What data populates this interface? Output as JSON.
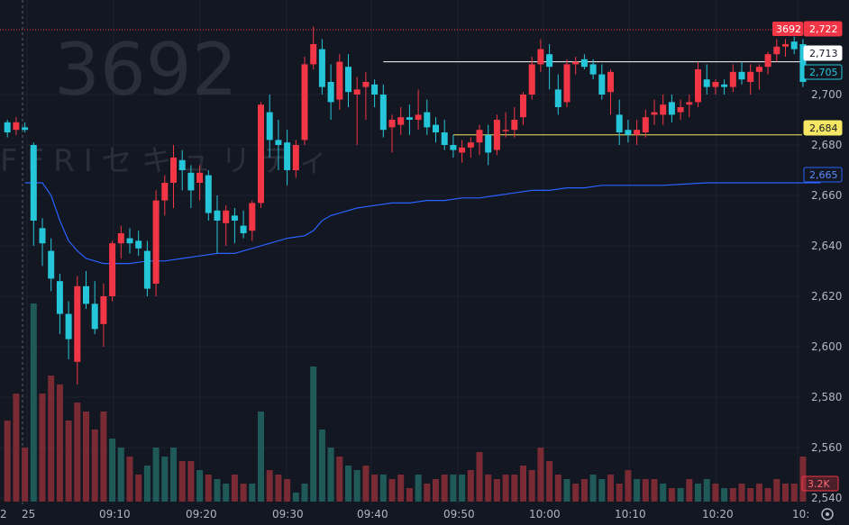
{
  "chart_data": {
    "type": "candlestick",
    "symbol": "3692",
    "watermark_code": "3692",
    "watermark_name": "FFRIセキュリティ",
    "colors": {
      "up": "#f23645",
      "down": "#22ab94",
      "up_body": "#f23645",
      "down_body": "#26c6da",
      "vwap": "#2962ff",
      "vol_up": "#7a2a33",
      "vol_down": "#1f5a59"
    },
    "y_axis": {
      "ticks": [
        2540,
        2560,
        2580,
        2600,
        2620,
        2640,
        2660,
        2680,
        2700
      ],
      "tick_labels": [
        "2,540",
        "2,560",
        "2,580",
        "2,600",
        "2,620",
        "2,640",
        "2,660",
        "2,680",
        "2,700"
      ]
    },
    "x_axis": {
      "ticks": [
        "25",
        "09:10",
        "09:20",
        "09:30",
        "09:40",
        "09:50",
        "10:00",
        "10:10",
        "10:20",
        "10:"
      ],
      "left_label": "2"
    },
    "price_tags": [
      {
        "value": 2722,
        "label": "2,722",
        "prefix": "3692",
        "style": "red"
      },
      {
        "value": 2713,
        "label": "2,713",
        "style": "white"
      },
      {
        "value": 2705,
        "label": "2,705",
        "style": "teal"
      },
      {
        "value": 2684,
        "label": "2,684",
        "style": "yellow"
      },
      {
        "value": 2665,
        "label": "2,665",
        "style": "blue"
      }
    ],
    "volume_tag": "3.2K",
    "horizontal_lines": [
      {
        "value": 2713,
        "from_bar": 43
      },
      {
        "value": 2684,
        "from_bar": 51
      }
    ],
    "candles": [
      [
        2689,
        2690,
        2683,
        2685
      ],
      [
        2686,
        2691,
        2684,
        2689
      ],
      [
        2687,
        2689,
        2685,
        2686
      ],
      [
        2680,
        2681,
        2640,
        2650
      ],
      [
        2647,
        2651,
        2632,
        2641
      ],
      [
        2638,
        2643,
        2622,
        2627
      ],
      [
        2626,
        2629,
        2605,
        2613
      ],
      [
        2613,
        2618,
        2595,
        2603
      ],
      [
        2594,
        2628,
        2585,
        2624
      ],
      [
        2624,
        2630,
        2615,
        2617
      ],
      [
        2617,
        2626,
        2605,
        2607
      ],
      [
        2609,
        2625,
        2600,
        2620
      ],
      [
        2620,
        2642,
        2618,
        2641
      ],
      [
        2641,
        2648,
        2635,
        2645
      ],
      [
        2643,
        2647,
        2637,
        2641
      ],
      [
        2642,
        2646,
        2636,
        2639
      ],
      [
        2638,
        2642,
        2620,
        2623
      ],
      [
        2625,
        2662,
        2620,
        2658
      ],
      [
        2658,
        2668,
        2652,
        2665
      ],
      [
        2665,
        2680,
        2655,
        2675
      ],
      [
        2674,
        2678,
        2662,
        2670
      ],
      [
        2669,
        2672,
        2655,
        2662
      ],
      [
        2665,
        2672,
        2658,
        2669
      ],
      [
        2668,
        2670,
        2650,
        2653
      ],
      [
        2654,
        2660,
        2637,
        2650
      ],
      [
        2649,
        2656,
        2640,
        2654
      ],
      [
        2652,
        2655,
        2641,
        2650
      ],
      [
        2648,
        2654,
        2643,
        2645
      ],
      [
        2646,
        2658,
        2642,
        2657
      ],
      [
        2657,
        2697,
        2655,
        2696
      ],
      [
        2693,
        2700,
        2675,
        2682
      ],
      [
        2682,
        2690,
        2670,
        2680
      ],
      [
        2681,
        2686,
        2664,
        2670
      ],
      [
        2670,
        2682,
        2667,
        2680
      ],
      [
        2682,
        2715,
        2680,
        2712
      ],
      [
        2712,
        2727,
        2710,
        2720
      ],
      [
        2718,
        2722,
        2700,
        2703
      ],
      [
        2705,
        2712,
        2690,
        2697
      ],
      [
        2698,
        2716,
        2694,
        2713
      ],
      [
        2711,
        2716,
        2695,
        2701
      ],
      [
        2700,
        2707,
        2680,
        2702
      ],
      [
        2703,
        2709,
        2690,
        2705
      ],
      [
        2704,
        2706,
        2695,
        2700
      ],
      [
        2700,
        2704,
        2683,
        2686
      ],
      [
        2687,
        2692,
        2677,
        2690
      ],
      [
        2688,
        2695,
        2684,
        2691
      ],
      [
        2691,
        2696,
        2684,
        2690
      ],
      [
        2690,
        2702,
        2686,
        2692
      ],
      [
        2693,
        2698,
        2684,
        2687
      ],
      [
        2688,
        2691,
        2681,
        2685
      ],
      [
        2685,
        2690,
        2678,
        2680
      ],
      [
        2680,
        2684,
        2675,
        2678
      ],
      [
        2677,
        2682,
        2673,
        2679
      ],
      [
        2679,
        2683,
        2675,
        2681
      ],
      [
        2681,
        2688,
        2676,
        2686
      ],
      [
        2684,
        2688,
        2672,
        2677
      ],
      [
        2678,
        2692,
        2676,
        2690
      ],
      [
        2686,
        2693,
        2683,
        2686
      ],
      [
        2686,
        2695,
        2683,
        2690
      ],
      [
        2691,
        2701,
        2688,
        2700
      ],
      [
        2700,
        2715,
        2698,
        2712
      ],
      [
        2712,
        2722,
        2709,
        2718
      ],
      [
        2716,
        2720,
        2702,
        2711
      ],
      [
        2702,
        2708,
        2692,
        2695
      ],
      [
        2697,
        2714,
        2695,
        2712
      ],
      [
        2712,
        2715,
        2708,
        2713
      ],
      [
        2714,
        2716,
        2710,
        2711
      ],
      [
        2712,
        2714,
        2706,
        2708
      ],
      [
        2708,
        2712,
        2698,
        2700
      ],
      [
        2701,
        2710,
        2692,
        2709
      ],
      [
        2692,
        2698,
        2680,
        2685
      ],
      [
        2686,
        2690,
        2681,
        2684
      ],
      [
        2684,
        2690,
        2680,
        2686
      ],
      [
        2685,
        2694,
        2683,
        2691
      ],
      [
        2692,
        2698,
        2688,
        2693
      ],
      [
        2692,
        2700,
        2688,
        2696
      ],
      [
        2697,
        2700,
        2689,
        2692
      ],
      [
        2693,
        2698,
        2690,
        2695
      ],
      [
        2696,
        2700,
        2691,
        2697
      ],
      [
        2697,
        2713,
        2695,
        2710
      ],
      [
        2706,
        2712,
        2700,
        2703
      ],
      [
        2703,
        2706,
        2700,
        2705
      ],
      [
        2704,
        2706,
        2700,
        2703
      ],
      [
        2703,
        2712,
        2701,
        2709
      ],
      [
        2709,
        2713,
        2704,
        2706
      ],
      [
        2705,
        2712,
        2700,
        2709
      ],
      [
        2709,
        2712,
        2702,
        2711
      ],
      [
        2711,
        2717,
        2708,
        2716
      ],
      [
        2716,
        2722,
        2713,
        2719
      ],
      [
        2719,
        2722,
        2715,
        2720
      ],
      [
        2721,
        2723,
        2716,
        2718
      ],
      [
        2720,
        2722,
        2703,
        2705
      ]
    ],
    "vwap": [
      [
        2,
        2665
      ],
      [
        3,
        2665
      ],
      [
        4,
        2665
      ],
      [
        5,
        2660
      ],
      [
        6,
        2650
      ],
      [
        7,
        2642
      ],
      [
        8,
        2638
      ],
      [
        9,
        2635
      ],
      [
        10,
        2634
      ],
      [
        11,
        2633
      ],
      [
        12,
        2633
      ],
      [
        14,
        2633
      ],
      [
        16,
        2634
      ],
      [
        18,
        2634
      ],
      [
        20,
        2635
      ],
      [
        22,
        2636
      ],
      [
        24,
        2637
      ],
      [
        26,
        2637
      ],
      [
        28,
        2639
      ],
      [
        30,
        2641
      ],
      [
        31,
        2642
      ],
      [
        32,
        2643
      ],
      [
        34,
        2644
      ],
      [
        35,
        2646
      ],
      [
        36,
        2650
      ],
      [
        37,
        2652
      ],
      [
        38,
        2653
      ],
      [
        40,
        2655
      ],
      [
        42,
        2656
      ],
      [
        44,
        2657
      ],
      [
        46,
        2657
      ],
      [
        48,
        2658
      ],
      [
        50,
        2658
      ],
      [
        52,
        2659
      ],
      [
        54,
        2659
      ],
      [
        56,
        2660
      ],
      [
        58,
        2661
      ],
      [
        60,
        2662
      ],
      [
        62,
        2662
      ],
      [
        64,
        2663
      ],
      [
        66,
        2663
      ],
      [
        68,
        2664
      ],
      [
        70,
        2664
      ],
      [
        75,
        2664
      ],
      [
        80,
        2665
      ],
      [
        85,
        2665
      ],
      [
        93,
        2665
      ]
    ],
    "volume": [
      [
        90,
        "up"
      ],
      [
        120,
        "up"
      ],
      [
        60,
        "up"
      ],
      [
        220,
        "down"
      ],
      [
        120,
        "up"
      ],
      [
        140,
        "up"
      ],
      [
        130,
        "up"
      ],
      [
        90,
        "up"
      ],
      [
        110,
        "up"
      ],
      [
        100,
        "up"
      ],
      [
        80,
        "up"
      ],
      [
        100,
        "up"
      ],
      [
        70,
        "down"
      ],
      [
        60,
        "down"
      ],
      [
        50,
        "up"
      ],
      [
        30,
        "up"
      ],
      [
        40,
        "down"
      ],
      [
        60,
        "down"
      ],
      [
        50,
        "down"
      ],
      [
        60,
        "down"
      ],
      [
        45,
        "up"
      ],
      [
        45,
        "up"
      ],
      [
        35,
        "down"
      ],
      [
        30,
        "up"
      ],
      [
        25,
        "down"
      ],
      [
        20,
        "down"
      ],
      [
        30,
        "up"
      ],
      [
        20,
        "up"
      ],
      [
        20,
        "down"
      ],
      [
        100,
        "down"
      ],
      [
        35,
        "up"
      ],
      [
        30,
        "up"
      ],
      [
        25,
        "up"
      ],
      [
        10,
        "down"
      ],
      [
        20,
        "down"
      ],
      [
        150,
        "down"
      ],
      [
        80,
        "down"
      ],
      [
        60,
        "down"
      ],
      [
        50,
        "up"
      ],
      [
        40,
        "down"
      ],
      [
        35,
        "down"
      ],
      [
        40,
        "up"
      ],
      [
        30,
        "up"
      ],
      [
        30,
        "down"
      ],
      [
        25,
        "up"
      ],
      [
        30,
        "up"
      ],
      [
        15,
        "up"
      ],
      [
        30,
        "down"
      ],
      [
        20,
        "up"
      ],
      [
        25,
        "up"
      ],
      [
        30,
        "up"
      ],
      [
        30,
        "down"
      ],
      [
        30,
        "down"
      ],
      [
        35,
        "up"
      ],
      [
        55,
        "up"
      ],
      [
        30,
        "up"
      ],
      [
        25,
        "up"
      ],
      [
        30,
        "up"
      ],
      [
        30,
        "up"
      ],
      [
        40,
        "up"
      ],
      [
        35,
        "up"
      ],
      [
        60,
        "up"
      ],
      [
        45,
        "up"
      ],
      [
        30,
        "up"
      ],
      [
        25,
        "down"
      ],
      [
        20,
        "up"
      ],
      [
        25,
        "up"
      ],
      [
        30,
        "down"
      ],
      [
        25,
        "down"
      ],
      [
        30,
        "up"
      ],
      [
        20,
        "up"
      ],
      [
        35,
        "up"
      ],
      [
        25,
        "down"
      ],
      [
        25,
        "up"
      ],
      [
        25,
        "up"
      ],
      [
        20,
        "down"
      ],
      [
        15,
        "up"
      ],
      [
        15,
        "down"
      ],
      [
        25,
        "up"
      ],
      [
        20,
        "down"
      ],
      [
        25,
        "down"
      ],
      [
        20,
        "up"
      ],
      [
        15,
        "down"
      ],
      [
        15,
        "up"
      ],
      [
        20,
        "up"
      ],
      [
        15,
        "up"
      ],
      [
        20,
        "up"
      ],
      [
        15,
        "up"
      ],
      [
        25,
        "up"
      ],
      [
        20,
        "up"
      ],
      [
        20,
        "up"
      ],
      [
        50,
        "up"
      ]
    ]
  }
}
